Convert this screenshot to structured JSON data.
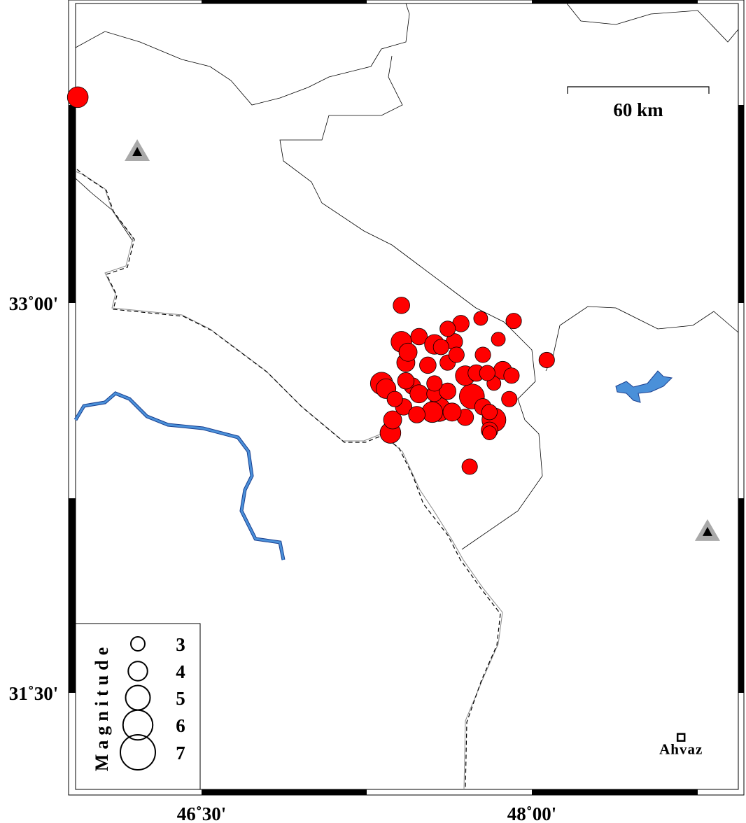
{
  "map": {
    "lon_range": [
      45.93,
      48.94
    ],
    "lat_range": [
      31.13,
      34.15
    ],
    "lon_ticks": [
      {
        "value": 46.5,
        "label": "46˚30'"
      },
      {
        "value": 48.0,
        "label": "48˚00'"
      }
    ],
    "lat_ticks": [
      {
        "value": 33.0,
        "label": "33˚00'"
      },
      {
        "value": 31.5,
        "label": "31˚30'"
      }
    ],
    "colors": {
      "event": "#ff0000",
      "water": "#4a90d9",
      "border": "#000000",
      "station": "#a9a9a9"
    }
  },
  "scale_bar": {
    "label": "60 km"
  },
  "legend": {
    "title": "Magnitude",
    "items": [
      {
        "mag": 3,
        "label": "3"
      },
      {
        "mag": 4,
        "label": "4"
      },
      {
        "mag": 5,
        "label": "5"
      },
      {
        "mag": 6,
        "label": "6"
      },
      {
        "mag": 7,
        "label": "7"
      }
    ]
  },
  "cities": [
    {
      "name": "Ahvaz",
      "lon": 48.68,
      "lat": 31.33
    }
  ],
  "stations": [
    {
      "lon": 46.21,
      "lat": 33.58
    },
    {
      "lon": 48.8,
      "lat": 32.12
    }
  ],
  "events": [
    [
      47.41,
      32.99,
      3.5
    ],
    [
      47.92,
      32.93,
      3.3
    ],
    [
      47.77,
      32.94,
      3.0
    ],
    [
      48.07,
      32.78,
      3.3
    ],
    [
      47.72,
      32.37,
      3.3
    ],
    [
      45.94,
      33.79,
      4.3
    ],
    [
      47.32,
      32.69,
      4.6
    ],
    [
      47.34,
      32.67,
      4.1
    ],
    [
      47.36,
      32.5,
      4.3
    ],
    [
      47.37,
      32.55,
      3.8
    ],
    [
      47.41,
      32.85,
      4.3
    ],
    [
      47.43,
      32.77,
      3.8
    ],
    [
      47.49,
      32.87,
      3.5
    ],
    [
      47.56,
      32.84,
      4.1
    ],
    [
      47.53,
      32.76,
      3.5
    ],
    [
      47.58,
      32.59,
      4.9
    ],
    [
      47.55,
      32.58,
      4.3
    ],
    [
      47.73,
      32.64,
      5.1
    ],
    [
      47.7,
      32.72,
      4.1
    ],
    [
      47.83,
      32.55,
      4.9
    ],
    [
      47.81,
      32.51,
      3.5
    ],
    [
      47.87,
      32.74,
      3.8
    ],
    [
      47.91,
      32.72,
      3.3
    ],
    [
      47.68,
      32.92,
      3.5
    ],
    [
      47.65,
      32.85,
      3.5
    ],
    [
      47.62,
      32.77,
      3.3
    ],
    [
      47.46,
      32.68,
      3.5
    ],
    [
      47.42,
      32.6,
      3.5
    ],
    [
      47.49,
      32.65,
      3.8
    ],
    [
      47.56,
      32.65,
      3.3
    ],
    [
      47.62,
      32.66,
      3.5
    ],
    [
      47.78,
      32.8,
      3.3
    ],
    [
      47.85,
      32.86,
      3.0
    ],
    [
      47.83,
      32.69,
      3.0
    ],
    [
      47.9,
      32.63,
      3.3
    ],
    [
      47.7,
      32.56,
      3.5
    ],
    [
      47.78,
      32.6,
      3.5
    ],
    [
      47.44,
      32.81,
      3.8
    ],
    [
      47.59,
      32.83,
      3.3
    ],
    [
      47.66,
      32.8,
      3.3
    ],
    [
      47.48,
      32.57,
      3.5
    ],
    [
      47.64,
      32.58,
      3.8
    ],
    [
      47.81,
      32.58,
      3.3
    ],
    [
      47.43,
      32.7,
      3.5
    ],
    [
      47.56,
      32.69,
      3.3
    ],
    [
      47.75,
      32.73,
      3.5
    ],
    [
      47.8,
      32.73,
      3.3
    ],
    [
      47.38,
      32.63,
      3.3
    ],
    [
      47.62,
      32.9,
      3.3
    ],
    [
      47.81,
      32.5,
      3.0
    ]
  ]
}
